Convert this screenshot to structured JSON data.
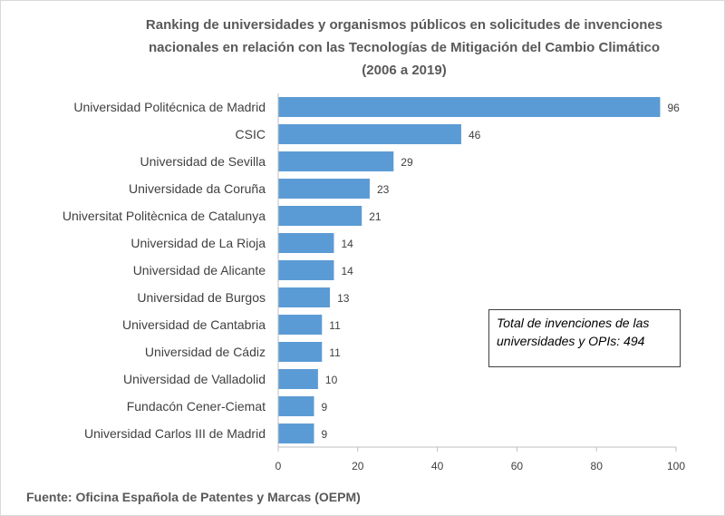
{
  "chart_data": {
    "type": "bar",
    "orientation": "horizontal",
    "title": [
      "Ranking de universidades y organismos públicos en solicitudes de invenciones",
      "nacionales en relación con las Tecnologías de Mitigación del Cambio Climático",
      "(2006 a 2019)"
    ],
    "categories": [
      "Universidad Politécnica de Madrid",
      "CSIC",
      "Universidad de Sevilla",
      "Universidade da Coruña",
      "Universitat Politècnica de Catalunya",
      "Universidad de La Rioja",
      "Universidad de Alicante",
      "Universidad de Burgos",
      "Universidad de Cantabria",
      "Universidad de Cádiz",
      "Universidad de Valladolid",
      "Fundacón Cener-Ciemat",
      "Universidad Carlos III de Madrid"
    ],
    "values": [
      96,
      46,
      29,
      23,
      21,
      14,
      14,
      13,
      11,
      11,
      10,
      9,
      9
    ],
    "xlim": [
      0,
      100
    ],
    "xticks": [
      0,
      20,
      40,
      60,
      80,
      100
    ],
    "grid": false,
    "bar_color": "#5b9bd5",
    "annotation": [
      "Total de invenciones de las",
      "universidades y OPIs: 494"
    ],
    "source": "Fuente: Oficina Española de Patentes y Marcas (OEPM)"
  }
}
